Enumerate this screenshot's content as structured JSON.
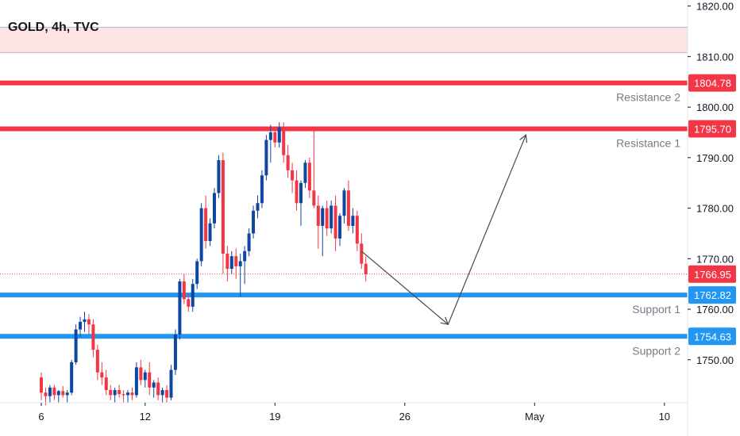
{
  "header": {
    "title": "GOLD, 4h, TVC"
  },
  "chart_data": {
    "type": "candlestick",
    "title": "GOLD, 4h, TVC",
    "ylim": [
      1741.5,
      1821.2
    ],
    "y_ticks": [
      1750,
      1760,
      1770,
      1780,
      1790,
      1800,
      1810,
      1820
    ],
    "y_tick_labels": [
      "1750.00",
      "1760.00",
      "1770.00",
      "1780.00",
      "1790.00",
      "1800.00",
      "1810.00",
      "1820.00"
    ],
    "x_ticks": [
      {
        "label": "6",
        "bar": 0
      },
      {
        "label": "12",
        "bar": 24
      },
      {
        "label": "19",
        "bar": 54
      },
      {
        "label": "26",
        "bar": 84
      },
      {
        "label": "May",
        "bar": 114
      },
      {
        "label": "10",
        "bar": 144
      }
    ],
    "candles": [
      [
        1746.5,
        1747.5,
        1742.0,
        1743.5
      ],
      [
        1743.5,
        1744.5,
        1741.0,
        1742.8
      ],
      [
        1742.8,
        1745.0,
        1741.5,
        1744.5
      ],
      [
        1744.5,
        1745.0,
        1742.0,
        1743.0
      ],
      [
        1743.0,
        1744.0,
        1741.5,
        1743.8
      ],
      [
        1743.8,
        1744.8,
        1742.5,
        1743.0
      ],
      [
        1743.0,
        1744.0,
        1741.5,
        1743.5
      ],
      [
        1743.5,
        1750.0,
        1743.0,
        1749.5
      ],
      [
        1749.5,
        1757.0,
        1749.0,
        1756.0
      ],
      [
        1756.0,
        1758.5,
        1754.5,
        1757.5
      ],
      [
        1757.5,
        1759.5,
        1755.5,
        1758.0
      ],
      [
        1758.0,
        1759.0,
        1755.0,
        1757.0
      ],
      [
        1757.0,
        1758.0,
        1750.5,
        1752.0
      ],
      [
        1752.0,
        1753.0,
        1746.0,
        1747.5
      ],
      [
        1747.5,
        1749.5,
        1745.0,
        1746.5
      ],
      [
        1746.5,
        1748.0,
        1743.0,
        1744.0
      ],
      [
        1744.0,
        1745.0,
        1742.0,
        1743.0
      ],
      [
        1743.0,
        1744.5,
        1741.5,
        1744.0
      ],
      [
        1744.0,
        1745.0,
        1742.5,
        1743.2
      ],
      [
        1743.2,
        1744.0,
        1741.5,
        1743.0
      ],
      [
        1743.0,
        1744.0,
        1741.5,
        1743.5
      ],
      [
        1743.5,
        1744.5,
        1742.0,
        1743.0
      ],
      [
        1743.0,
        1749.5,
        1742.5,
        1748.5
      ],
      [
        1748.5,
        1750.0,
        1745.0,
        1746.0
      ],
      [
        1746.0,
        1748.0,
        1744.5,
        1747.5
      ],
      [
        1747.5,
        1749.5,
        1743.0,
        1744.5
      ],
      [
        1744.5,
        1746.0,
        1742.5,
        1745.5
      ],
      [
        1745.5,
        1746.5,
        1742.0,
        1743.0
      ],
      [
        1743.0,
        1744.5,
        1741.5,
        1744.0
      ],
      [
        1744.0,
        1745.0,
        1741.5,
        1742.5
      ],
      [
        1742.5,
        1749.0,
        1742.0,
        1748.0
      ],
      [
        1748.0,
        1756.0,
        1747.0,
        1755.0
      ],
      [
        1755.0,
        1766.0,
        1754.0,
        1765.5
      ],
      [
        1765.5,
        1767.0,
        1761.0,
        1762.0
      ],
      [
        1762.0,
        1763.0,
        1759.5,
        1760.5
      ],
      [
        1760.5,
        1766.0,
        1759.5,
        1765.0
      ],
      [
        1765.0,
        1770.0,
        1764.0,
        1769.5
      ],
      [
        1769.5,
        1781.0,
        1768.5,
        1780.0
      ],
      [
        1780.0,
        1782.5,
        1772.0,
        1773.5
      ],
      [
        1773.5,
        1778.0,
        1772.5,
        1777.0
      ],
      [
        1777.0,
        1784.0,
        1776.0,
        1783.0
      ],
      [
        1783.0,
        1790.5,
        1782.0,
        1789.5
      ],
      [
        1789.5,
        1791.0,
        1767.0,
        1771.0
      ],
      [
        1771.0,
        1772.5,
        1765.5,
        1768.0
      ],
      [
        1768.0,
        1771.5,
        1767.0,
        1770.5
      ],
      [
        1770.5,
        1772.0,
        1766.0,
        1768.5
      ],
      [
        1768.5,
        1771.0,
        1762.5,
        1769.5
      ],
      [
        1769.5,
        1772.5,
        1765.0,
        1771.5
      ],
      [
        1771.5,
        1776.0,
        1770.5,
        1775.0
      ],
      [
        1775.0,
        1780.5,
        1774.0,
        1779.5
      ],
      [
        1779.5,
        1782.5,
        1778.0,
        1781.0
      ],
      [
        1781.0,
        1787.5,
        1780.0,
        1786.5
      ],
      [
        1786.5,
        1794.5,
        1785.5,
        1793.5
      ],
      [
        1793.5,
        1796.5,
        1789.0,
        1795.0
      ],
      [
        1795.0,
        1796.0,
        1792.0,
        1793.0
      ],
      [
        1793.0,
        1797.0,
        1792.0,
        1796.0
      ],
      [
        1796.0,
        1797.0,
        1789.0,
        1790.5
      ],
      [
        1790.5,
        1792.5,
        1786.0,
        1787.5
      ],
      [
        1787.5,
        1789.0,
        1783.0,
        1785.5
      ],
      [
        1785.5,
        1787.5,
        1779.5,
        1781.0
      ],
      [
        1781.0,
        1785.5,
        1776.5,
        1785.0
      ],
      [
        1785.0,
        1789.5,
        1784.0,
        1789.0
      ],
      [
        1789.0,
        1790.0,
        1782.0,
        1783.5
      ],
      [
        1783.5,
        1795.5,
        1780.0,
        1780.5
      ],
      [
        1780.5,
        1782.5,
        1772.0,
        1776.5
      ],
      [
        1776.5,
        1780.5,
        1770.5,
        1780.0
      ],
      [
        1780.0,
        1781.5,
        1774.5,
        1776.0
      ],
      [
        1776.0,
        1781.5,
        1775.0,
        1780.5
      ],
      [
        1780.5,
        1782.5,
        1771.5,
        1774.0
      ],
      [
        1774.0,
        1779.0,
        1772.5,
        1778.5
      ],
      [
        1778.5,
        1784.0,
        1777.0,
        1783.5
      ],
      [
        1783.5,
        1785.5,
        1775.5,
        1776.5
      ],
      [
        1776.5,
        1780.0,
        1775.0,
        1778.5
      ],
      [
        1778.5,
        1779.5,
        1771.5,
        1773.0
      ],
      [
        1773.0,
        1775.0,
        1768.0,
        1769.0
      ],
      [
        1769.0,
        1770.5,
        1765.5,
        1766.95
      ]
    ],
    "horizontal_levels": [
      {
        "name": "Resistance 2",
        "value": 1804.78,
        "tag": "1804.78",
        "color": "#f23645"
      },
      {
        "name": "Resistance 1",
        "value": 1795.7,
        "tag": "1795.70",
        "color": "#f23645"
      },
      {
        "name": "Support 1",
        "value": 1762.82,
        "tag": "1762.82",
        "color": "#2196f3"
      },
      {
        "name": "Support 2",
        "value": 1754.63,
        "tag": "1754.63",
        "color": "#2196f3"
      }
    ],
    "last_price": {
      "value": 1766.95,
      "tag": "1766.95",
      "color": "#f23645"
    },
    "supply_zone": {
      "from": 1810.8,
      "to": 1815.8,
      "color": "#fde3e4"
    },
    "projection": [
      {
        "bar": 74,
        "price": 1771.5
      },
      {
        "bar": 94,
        "price": 1757.0
      },
      {
        "bar": 112,
        "price": 1794.5
      }
    ],
    "projection_color": "#4a4a4a",
    "up_color": "#0d47a1",
    "down_color": "#f23645",
    "grid": false
  }
}
